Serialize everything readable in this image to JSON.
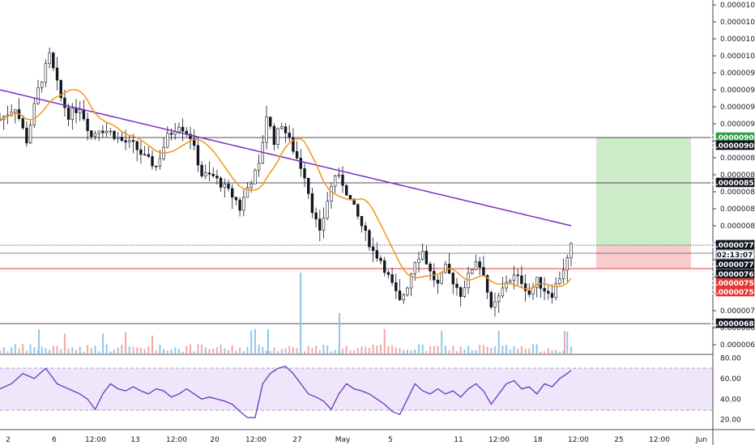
{
  "chart_data": {
    "type": "candlestick",
    "price_axis": {
      "ylim": [
        6.4e-06,
        1.07e-06
      ],
      "ticks": [
        "0.00001060",
        "0.00001040",
        "0.00001020",
        "0.00001000",
        "0.00000980",
        "0.00000960",
        "0.00000940",
        "0.00000920",
        "0.00000900",
        "0.00000880",
        "0.00000860",
        "0.00000840",
        "0.00000820",
        "0.00000800",
        "0.00000780",
        "0.00000760",
        "0.00000740",
        "0.00000720",
        "0.00000700",
        "0.00000680",
        "0.00000660"
      ]
    },
    "rsi_axis": {
      "ylim": [
        15,
        82
      ],
      "ticks": [
        "80.00",
        "60.00",
        "40.00",
        "20.00"
      ]
    },
    "x_labels": [
      "2",
      "6",
      "12:00",
      "13",
      "12:00",
      "20",
      "12:00",
      "27",
      "May",
      "5",
      "11",
      "12:00",
      "18",
      "12:00",
      "25",
      "12:00",
      "Jun"
    ],
    "price_tags": [
      {
        "value": "0.00000906",
        "bg": "#2e9e44",
        "fg": "#ffffff",
        "pos": 9.06e-06
      },
      {
        "value": "0.00000906",
        "bg": "#131722",
        "fg": "#ffffff",
        "pos": 9.06e-06
      },
      {
        "value": "0.00000852",
        "bg": "#131722",
        "fg": "#ffffff",
        "pos": 8.52e-06
      },
      {
        "value": "0.00000776",
        "bg": "#131722",
        "fg": "#ffffff",
        "pos": 7.76e-06
      },
      {
        "value": "02:13:07",
        "bg": "#ffffff",
        "fg": "#131722",
        "pos": 7.66e-06
      },
      {
        "value": "0.00000776",
        "bg": "#131722",
        "fg": "#ffffff",
        "pos": 7.57e-06
      },
      {
        "value": "0.00000769",
        "bg": "#131722",
        "fg": "#ffffff",
        "pos": 7.45e-06
      },
      {
        "value": "0.00000750",
        "bg": "#e53935",
        "fg": "#ffffff",
        "pos": 7.33e-06
      },
      {
        "value": "0.00000750",
        "bg": "#e53935",
        "fg": "#ffffff",
        "pos": 7.21e-06
      },
      {
        "value": "0.00000685",
        "bg": "#131722",
        "fg": "#ffffff",
        "pos": 6.85e-06
      }
    ],
    "horizontal_lines": [
      9.06e-06,
      8.52e-06,
      7.76e-06,
      6.85e-06,
      7.5e-06
    ],
    "position": {
      "entry": 7.76e-06,
      "target": 9.06e-06,
      "stop": 7.5e-06
    },
    "price_path": [
      [
        0,
        925
      ],
      [
        4,
        940
      ],
      [
        7,
        900
      ],
      [
        10,
        960
      ],
      [
        13,
        1000
      ],
      [
        16,
        950
      ],
      [
        18,
        930
      ],
      [
        21,
        940
      ],
      [
        24,
        905
      ],
      [
        26,
        915
      ],
      [
        29,
        910
      ],
      [
        32,
        900
      ],
      [
        35,
        895
      ],
      [
        38,
        880
      ],
      [
        41,
        870
      ],
      [
        44,
        905
      ],
      [
        47,
        920
      ],
      [
        50,
        905
      ],
      [
        53,
        860
      ],
      [
        56,
        858
      ],
      [
        59,
        845
      ],
      [
        62,
        830
      ],
      [
        63,
        820
      ],
      [
        65,
        845
      ],
      [
        68,
        870
      ],
      [
        70,
        930
      ],
      [
        72,
        900
      ],
      [
        74,
        920
      ],
      [
        76,
        900
      ],
      [
        78,
        880
      ],
      [
        80,
        860
      ],
      [
        82,
        820
      ],
      [
        84,
        790
      ],
      [
        86,
        830
      ],
      [
        88,
        860
      ],
      [
        90,
        850
      ],
      [
        92,
        830
      ],
      [
        94,
        810
      ],
      [
        96,
        790
      ],
      [
        98,
        770
      ],
      [
        100,
        760
      ],
      [
        102,
        740
      ],
      [
        104,
        720
      ],
      [
        105,
        710
      ],
      [
        107,
        730
      ],
      [
        109,
        760
      ],
      [
        111,
        770
      ],
      [
        113,
        745
      ],
      [
        115,
        730
      ],
      [
        117,
        750
      ],
      [
        119,
        735
      ],
      [
        121,
        720
      ],
      [
        123,
        740
      ],
      [
        125,
        760
      ],
      [
        127,
        745
      ],
      [
        129,
        700
      ],
      [
        131,
        715
      ],
      [
        133,
        735
      ],
      [
        135,
        740
      ],
      [
        137,
        735
      ],
      [
        139,
        720
      ],
      [
        141,
        735
      ],
      [
        143,
        725
      ],
      [
        145,
        720
      ],
      [
        147,
        740
      ],
      [
        149,
        760
      ],
      [
        150,
        775
      ]
    ],
    "rsi": [
      [
        0,
        50
      ],
      [
        3,
        55
      ],
      [
        6,
        65
      ],
      [
        9,
        60
      ],
      [
        12,
        70
      ],
      [
        15,
        55
      ],
      [
        18,
        50
      ],
      [
        21,
        45
      ],
      [
        23,
        40
      ],
      [
        25,
        30
      ],
      [
        27,
        45
      ],
      [
        29,
        55
      ],
      [
        31,
        50
      ],
      [
        33,
        48
      ],
      [
        35,
        52
      ],
      [
        37,
        48
      ],
      [
        39,
        45
      ],
      [
        41,
        50
      ],
      [
        43,
        48
      ],
      [
        45,
        42
      ],
      [
        47,
        45
      ],
      [
        49,
        50
      ],
      [
        51,
        45
      ],
      [
        53,
        40
      ],
      [
        55,
        42
      ],
      [
        57,
        40
      ],
      [
        59,
        38
      ],
      [
        61,
        35
      ],
      [
        63,
        28
      ],
      [
        65,
        22
      ],
      [
        67,
        22
      ],
      [
        69,
        55
      ],
      [
        71,
        65
      ],
      [
        73,
        70
      ],
      [
        75,
        72
      ],
      [
        77,
        65
      ],
      [
        79,
        55
      ],
      [
        81,
        45
      ],
      [
        83,
        42
      ],
      [
        85,
        38
      ],
      [
        87,
        30
      ],
      [
        89,
        45
      ],
      [
        91,
        55
      ],
      [
        93,
        50
      ],
      [
        95,
        48
      ],
      [
        97,
        45
      ],
      [
        99,
        40
      ],
      [
        101,
        35
      ],
      [
        103,
        28
      ],
      [
        105,
        25
      ],
      [
        107,
        40
      ],
      [
        109,
        55
      ],
      [
        111,
        48
      ],
      [
        113,
        45
      ],
      [
        115,
        50
      ],
      [
        117,
        45
      ],
      [
        119,
        48
      ],
      [
        121,
        42
      ],
      [
        123,
        50
      ],
      [
        125,
        55
      ],
      [
        127,
        48
      ],
      [
        129,
        35
      ],
      [
        131,
        45
      ],
      [
        133,
        55
      ],
      [
        135,
        58
      ],
      [
        137,
        50
      ],
      [
        139,
        52
      ],
      [
        141,
        45
      ],
      [
        143,
        55
      ],
      [
        145,
        52
      ],
      [
        147,
        60
      ],
      [
        149,
        65
      ],
      [
        150,
        68
      ]
    ],
    "series": [
      {
        "type": "ma",
        "color": "#7b2fbf"
      },
      {
        "type": "ma",
        "color": "#f7931a"
      },
      {
        "type": "rsi",
        "color": "#673ab7"
      }
    ]
  }
}
